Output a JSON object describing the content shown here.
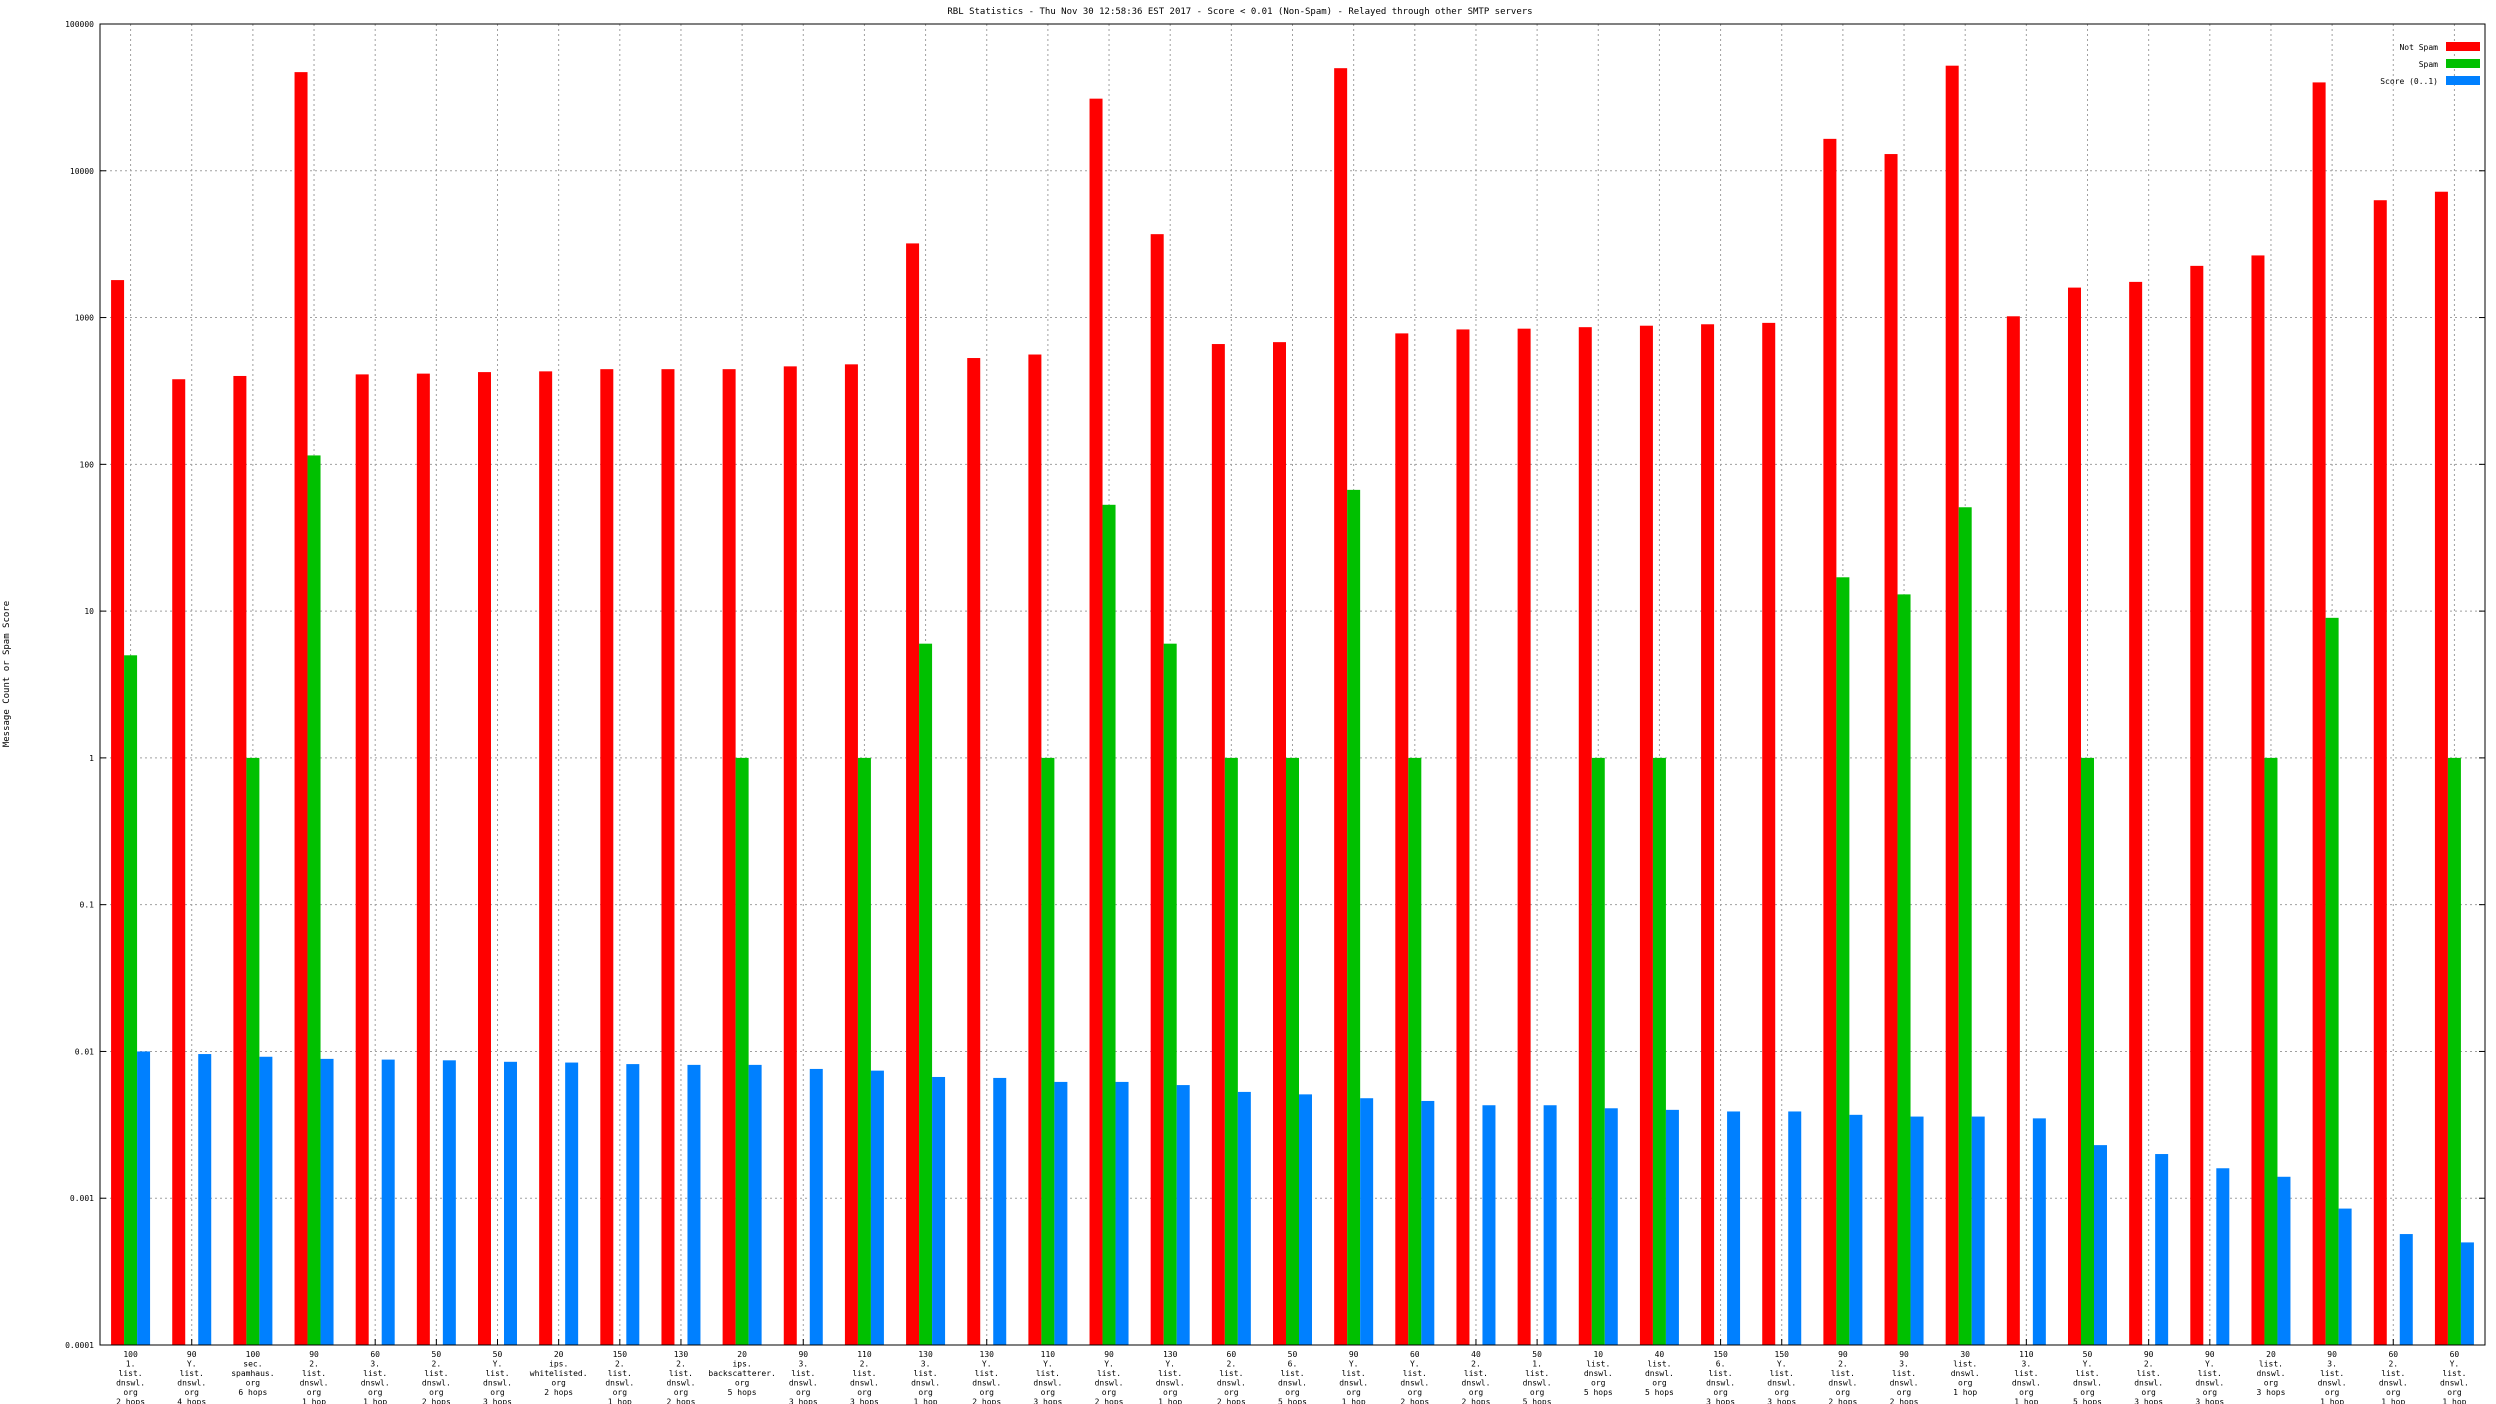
{
  "chart_data": {
    "type": "bar",
    "title": "RBL Statistics - Thu Nov 30 12:58:36 EST 2017 - Score < 0.01 (Non-Spam) - Relayed through other SMTP servers",
    "xlabel": "",
    "ylabel": "Message Count or Spam Score",
    "scale": "log",
    "ylim": [
      0.0001,
      100000
    ],
    "yticks": [
      "0.0001",
      "0.001",
      "0.01",
      "0.1",
      "1",
      "10",
      "100",
      "1000",
      "10000",
      "100000"
    ],
    "grid": true,
    "legend_position": "top-right",
    "categories": [
      [
        "100",
        "1.",
        "list.",
        "dnswl.",
        "org",
        "2 hops"
      ],
      [
        "90",
        "Y.",
        "list.",
        "dnswl.",
        "org",
        "4 hops"
      ],
      [
        "100",
        "sec.",
        "spamhaus.",
        "org",
        "6 hops"
      ],
      [
        "90",
        "2.",
        "list.",
        "dnswl.",
        "org",
        "1 hop"
      ],
      [
        "60",
        "3.",
        "list.",
        "dnswl.",
        "org",
        "1 hop"
      ],
      [
        "50",
        "2.",
        "list.",
        "dnswl.",
        "org",
        "2 hops"
      ],
      [
        "50",
        "Y.",
        "list.",
        "dnswl.",
        "org",
        "3 hops"
      ],
      [
        "20",
        "ips.",
        "whitelisted.",
        "org",
        "2 hops"
      ],
      [
        "150",
        "2.",
        "list.",
        "dnswl.",
        "org",
        "1 hop"
      ],
      [
        "130",
        "2.",
        "list.",
        "dnswl.",
        "org",
        "2 hops"
      ],
      [
        "20",
        "ips.",
        "backscatterer.",
        "org",
        "5 hops"
      ],
      [
        "90",
        "3.",
        "list.",
        "dnswl.",
        "org",
        "3 hops"
      ],
      [
        "110",
        "2.",
        "list.",
        "dnswl.",
        "org",
        "3 hops"
      ],
      [
        "130",
        "3.",
        "list.",
        "dnswl.",
        "org",
        "1 hop"
      ],
      [
        "130",
        "Y.",
        "list.",
        "dnswl.",
        "org",
        "2 hops"
      ],
      [
        "110",
        "Y.",
        "list.",
        "dnswl.",
        "org",
        "3 hops"
      ],
      [
        "90",
        "Y.",
        "list.",
        "dnswl.",
        "org",
        "2 hops"
      ],
      [
        "130",
        "Y.",
        "list.",
        "dnswl.",
        "org",
        "1 hop"
      ],
      [
        "60",
        "2.",
        "list.",
        "dnswl.",
        "org",
        "2 hops"
      ],
      [
        "50",
        "6.",
        "list.",
        "dnswl.",
        "org",
        "5 hops"
      ],
      [
        "90",
        "Y.",
        "list.",
        "dnswl.",
        "org",
        "1 hop"
      ],
      [
        "60",
        "Y.",
        "list.",
        "dnswl.",
        "org",
        "2 hops"
      ],
      [
        "40",
        "2.",
        "list.",
        "dnswl.",
        "org",
        "2 hops"
      ],
      [
        "50",
        "1.",
        "list.",
        "dnswl.",
        "org",
        "5 hops"
      ],
      [
        "10",
        "list.",
        "dnswl.",
        "org",
        "5 hops"
      ],
      [
        "40",
        "list.",
        "dnswl.",
        "org",
        "5 hops"
      ],
      [
        "150",
        "6.",
        "list.",
        "dnswl.",
        "org",
        "3 hops"
      ],
      [
        "150",
        "Y.",
        "list.",
        "dnswl.",
        "org",
        "3 hops"
      ],
      [
        "90",
        "2.",
        "list.",
        "dnswl.",
        "org",
        "2 hops"
      ],
      [
        "90",
        "3.",
        "list.",
        "dnswl.",
        "org",
        "2 hops"
      ],
      [
        "30",
        "list.",
        "dnswl.",
        "org",
        "1 hop"
      ],
      [
        "110",
        "3.",
        "list.",
        "dnswl.",
        "org",
        "1 hop"
      ],
      [
        "50",
        "Y.",
        "list.",
        "dnswl.",
        "org",
        "5 hops"
      ],
      [
        "90",
        "2.",
        "list.",
        "dnswl.",
        "org",
        "3 hops"
      ],
      [
        "90",
        "Y.",
        "list.",
        "dnswl.",
        "org",
        "3 hops"
      ],
      [
        "20",
        "list.",
        "dnswl.",
        "org",
        "3 hops"
      ],
      [
        "90",
        "3.",
        "list.",
        "dnswl.",
        "org",
        "1 hop"
      ],
      [
        "60",
        "2.",
        "list.",
        "dnswl.",
        "org",
        "1 hop"
      ],
      [
        "60",
        "Y.",
        "list.",
        "dnswl.",
        "org",
        "1 hop"
      ]
    ],
    "series": [
      {
        "name": "Not Spam",
        "color": "#ff0000",
        "values": [
          1800,
          380,
          400,
          47000,
          410,
          415,
          425,
          430,
          445,
          445,
          445,
          465,
          480,
          3200,
          530,
          560,
          31000,
          3700,
          660,
          680,
          50000,
          780,
          830,
          840,
          860,
          880,
          900,
          920,
          16500,
          13000,
          52000,
          1020,
          1600,
          1750,
          2250,
          2650,
          40000,
          6300,
          7200
        ]
      },
      {
        "name": "Spam",
        "color": "#00c000",
        "values": [
          5,
          null,
          1,
          115,
          null,
          null,
          null,
          null,
          null,
          null,
          1,
          null,
          1,
          6,
          null,
          1,
          53,
          6,
          1,
          1,
          67,
          1,
          null,
          null,
          1,
          1,
          null,
          null,
          17,
          13,
          51,
          null,
          1,
          null,
          null,
          1,
          9,
          null,
          1
        ]
      },
      {
        "name": "Score (0..1)",
        "color": "#0080ff",
        "values": [
          0.01,
          0.0096,
          0.0092,
          0.0089,
          0.0088,
          0.0087,
          0.0085,
          0.0084,
          0.0082,
          0.0081,
          0.0081,
          0.0076,
          0.0074,
          0.0067,
          0.0066,
          0.0062,
          0.0062,
          0.0059,
          0.0053,
          0.0051,
          0.0048,
          0.0046,
          0.0043,
          0.0043,
          0.0041,
          0.004,
          0.0039,
          0.0039,
          0.0037,
          0.0036,
          0.0036,
          0.0035,
          0.0023,
          0.002,
          0.0016,
          0.0014,
          0.00085,
          0.00057,
          0.0005
        ]
      }
    ]
  }
}
